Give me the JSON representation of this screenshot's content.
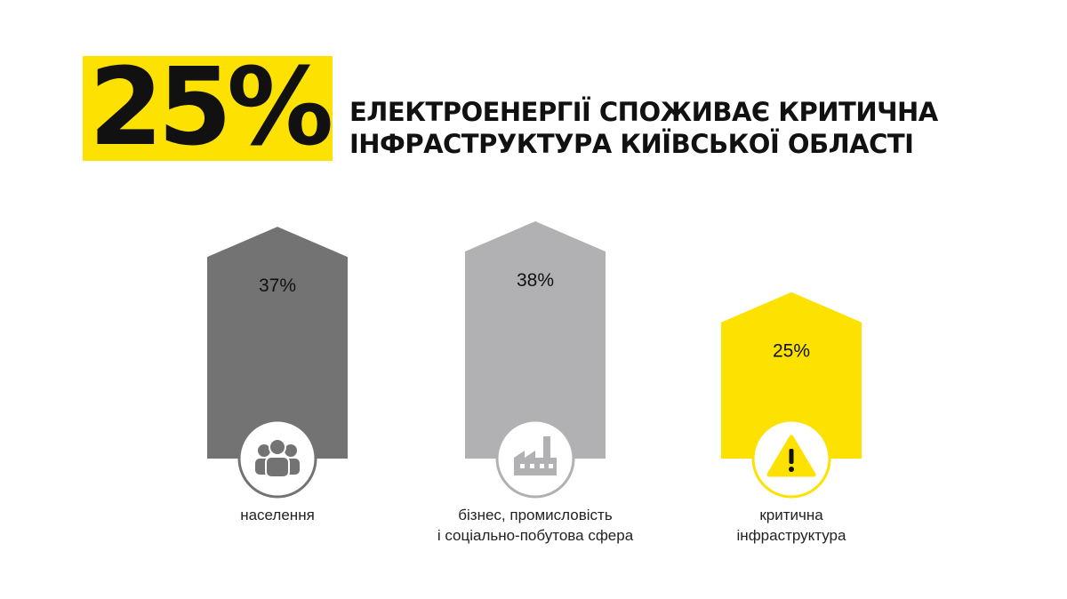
{
  "hero": {
    "number": "25%",
    "headline": [
      "ЕЛЕКТРОЕНЕРГІЇ СПОЖИВАЄ КРИТИЧНА",
      "ІНФРАСТРУКТУРА КИЇВСЬКОЇ ОБЛАСТІ"
    ]
  },
  "colors": {
    "accent": "#fde100",
    "dark_gray": "#737373",
    "light_gray": "#b1b1b3",
    "text": "#111111"
  },
  "chart_data": {
    "type": "bar",
    "categories": [
      "населення",
      "бізнес, промисловість і соціально-побутова сфера",
      "критична інфраструктура"
    ],
    "values": [
      37,
      38,
      25
    ],
    "value_labels": [
      "37%",
      "38%",
      "25%"
    ],
    "category_lines": [
      [
        "населення"
      ],
      [
        "бізнес, промисловість",
        "і соціально-побутова сфера"
      ],
      [
        "критична",
        "інфраструктура"
      ]
    ],
    "icons": [
      "people-icon",
      "factory-icon",
      "warning-icon"
    ],
    "bar_colors": [
      "#737373",
      "#b1b1b3",
      "#fde100"
    ],
    "unit": "%"
  }
}
